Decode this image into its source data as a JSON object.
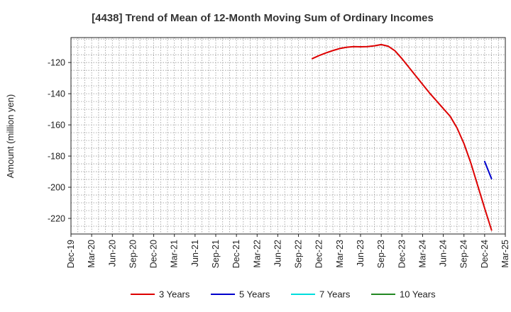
{
  "chart_data": {
    "type": "line",
    "title": "[4438]  Trend of Mean of 12-Month Moving Sum of Ordinary Incomes",
    "xlabel": "",
    "ylabel": "Amount (million yen)",
    "x_ticks": [
      "Dec-19",
      "Mar-20",
      "Jun-20",
      "Sep-20",
      "Dec-20",
      "Mar-21",
      "Jun-21",
      "Sep-21",
      "Dec-21",
      "Mar-22",
      "Jun-22",
      "Sep-22",
      "Dec-22",
      "Mar-23",
      "Jun-23",
      "Sep-23",
      "Dec-23",
      "Mar-24",
      "Jun-24",
      "Sep-24",
      "Dec-24",
      "Mar-25"
    ],
    "y_ticks": [
      -120,
      -140,
      -160,
      -180,
      -200,
      -220
    ],
    "ylim": [
      -230,
      -104
    ],
    "grid": true,
    "legend_position": "bottom",
    "series": [
      {
        "name": "3 Years",
        "color": "#dd0000",
        "points": [
          [
            "Nov-22",
            -117.5
          ],
          [
            "Dec-22",
            -115.5
          ],
          [
            "Jan-23",
            -113.8
          ],
          [
            "Feb-23",
            -112.3
          ],
          [
            "Mar-23",
            -111.0
          ],
          [
            "Apr-23",
            -110.2
          ],
          [
            "May-23",
            -109.8
          ],
          [
            "Jun-23",
            -109.9
          ],
          [
            "Jul-23",
            -109.8
          ],
          [
            "Aug-23",
            -109.3
          ],
          [
            "Sep-23",
            -108.5
          ],
          [
            "Oct-23",
            -109.5
          ],
          [
            "Nov-23",
            -112.5
          ],
          [
            "Dec-23",
            -117.5
          ],
          [
            "Jan-24",
            -123.0
          ],
          [
            "Feb-24",
            -128.5
          ],
          [
            "Mar-24",
            -134.0
          ],
          [
            "Apr-24",
            -139.5
          ],
          [
            "May-24",
            -144.5
          ],
          [
            "Jun-24",
            -149.5
          ],
          [
            "Jul-24",
            -154.5
          ],
          [
            "Aug-24",
            -162.0
          ],
          [
            "Sep-24",
            -172.0
          ],
          [
            "Oct-24",
            -184.5
          ],
          [
            "Nov-24",
            -199.0
          ],
          [
            "Dec-24",
            -213.5
          ],
          [
            "Jan-25",
            -227.5
          ]
        ]
      },
      {
        "name": "5 Years",
        "color": "#0000cc",
        "points": [
          [
            "Dec-24",
            -183.5
          ],
          [
            "Jan-25",
            -194.5
          ]
        ]
      },
      {
        "name": "7 Years",
        "color": "#00dddd",
        "points": []
      },
      {
        "name": "10 Years",
        "color": "#228822",
        "points": []
      }
    ]
  }
}
